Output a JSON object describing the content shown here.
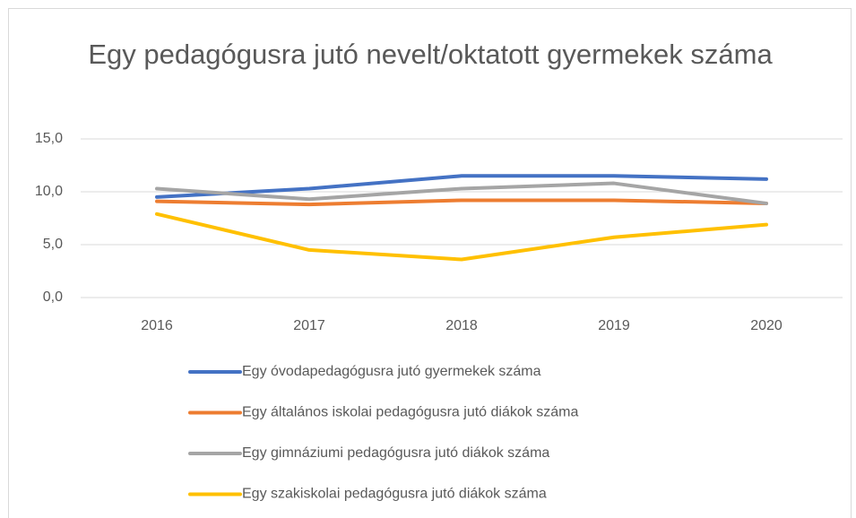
{
  "chart_data": {
    "type": "line",
    "title": "Egy pedagógusra jutó nevelt/oktatott gyermekek száma",
    "categories": [
      "2016",
      "2017",
      "2018",
      "2019",
      "2020"
    ],
    "series": [
      {
        "name": "Egy óvodapedagógusra jutó gyermekek száma",
        "color": "#4472c4",
        "values": [
          9.5,
          10.3,
          11.5,
          11.5,
          11.2
        ]
      },
      {
        "name": "Egy általános iskolai pedagógusra jutó diákok száma",
        "color": "#ed7d31",
        "values": [
          9.1,
          8.8,
          9.2,
          9.2,
          8.9
        ]
      },
      {
        "name": "Egy gimnáziumi pedagógusra jutó diákok száma",
        "color": "#a5a5a5",
        "values": [
          10.3,
          9.3,
          10.3,
          10.8,
          8.9
        ]
      },
      {
        "name": "Egy szakiskolai pedagógusra jutó diákok száma",
        "color": "#ffc000",
        "values": [
          7.9,
          4.5,
          3.6,
          5.7,
          6.9
        ]
      }
    ],
    "ylim": [
      0,
      15
    ],
    "yticks": [
      {
        "value": 0,
        "label": "0,0"
      },
      {
        "value": 5,
        "label": "5,0"
      },
      {
        "value": 10,
        "label": "10,0"
      },
      {
        "value": 15,
        "label": "15,0"
      }
    ],
    "grid": true,
    "legend": "bottom"
  }
}
